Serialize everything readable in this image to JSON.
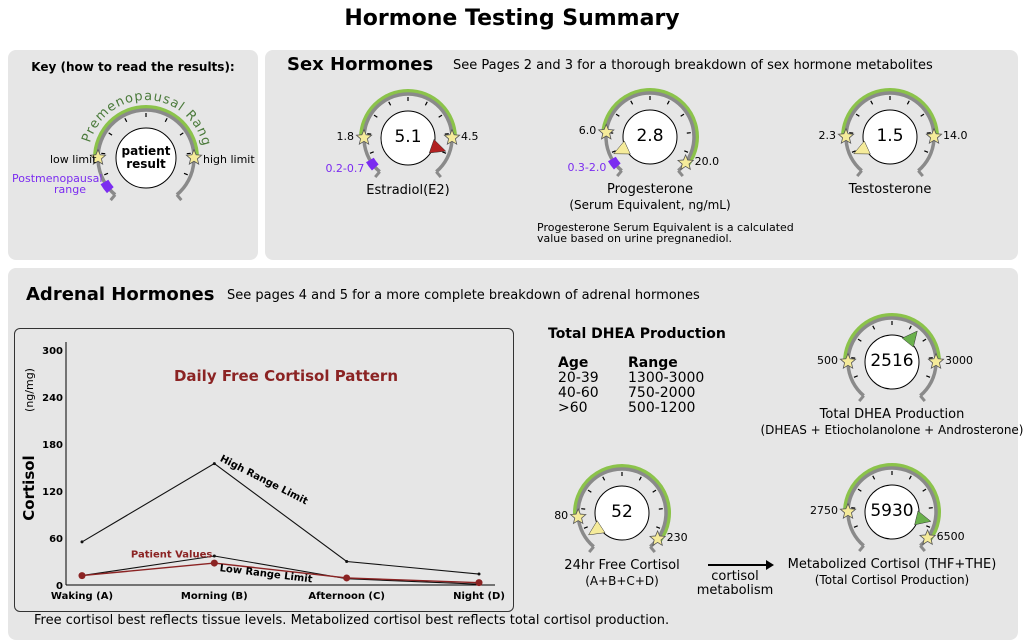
{
  "title": "Hormone Testing Summary",
  "key": {
    "title": "Key (how to read the results):",
    "arc_label": "Premenopausal Range",
    "center": [
      "patient",
      "result"
    ],
    "low": "low limit",
    "high": "high limit",
    "post": [
      "Postmenopausal",
      "range"
    ]
  },
  "sex": {
    "title": "Sex Hormones",
    "subtitle": "See Pages 2 and 3 for a thorough breakdown of sex hormone metabolites",
    "note": [
      "Progesterone Serum Equivalent is a calculated",
      "value based on urine pregnanediol."
    ]
  },
  "adrenal": {
    "title": "Adrenal Hormones",
    "subtitle": "See pages 4 and 5 for a more complete breakdown of adrenal hormones",
    "footer": "Free cortisol best reflects tissue levels. Metabolized cortisol best reflects total cortisol production.",
    "arrow_label": [
      "cortisol",
      "metabolism"
    ]
  },
  "dhea_table": {
    "title": "Total DHEA Production",
    "headers": [
      "Age",
      "Range"
    ],
    "rows": [
      [
        "20-39",
        "1300-3000"
      ],
      [
        "40-60",
        "750-2000"
      ],
      [
        ">60",
        "500-1200"
      ]
    ]
  },
  "colors": {
    "normal": "#6ab04c",
    "low": "#f5eb9a",
    "high": "#b22222",
    "range": "#8bc34a",
    "ring": "#8a8a8a",
    "post": "#7b2cf0",
    "chart_title": "#8b2323"
  },
  "gauges": [
    {
      "id": "estradiol",
      "value": "5.1",
      "low": "1.8",
      "high": "4.5",
      "post": "0.2-0.7",
      "name": "Estradiol(E2)",
      "sub": "",
      "status": "high",
      "low_pos": 0.18,
      "high_pos": 0.82,
      "value_pos": 0.89
    },
    {
      "id": "progesterone",
      "value": "2.8",
      "low": "6.0",
      "high": "20.0",
      "post": "0.3-2.0",
      "name": "Progesterone",
      "sub": "(Serum Equivalent, ng/mL)",
      "status": "low",
      "low_pos": 0.2,
      "high_pos": 0.95,
      "value_pos": 0.09
    },
    {
      "id": "testosterone",
      "value": "1.5",
      "low": "2.3",
      "high": "14.0",
      "post": "",
      "name": "Testosterone",
      "sub": "",
      "status": "low",
      "low_pos": 0.18,
      "high_pos": 0.82,
      "value_pos": 0.09
    },
    {
      "id": "dhea",
      "value": "2516",
      "low": "500",
      "high": "3000",
      "post": "",
      "name": "Total DHEA Production",
      "sub": "(DHEAS + Etiocholanolone + Androsterone)",
      "status": "normal",
      "low_pos": 0.18,
      "high_pos": 0.82,
      "value_pos": 0.64
    },
    {
      "id": "free-cortisol",
      "value": "52",
      "low": "80",
      "high": "230",
      "post": "",
      "name": "24hr Free Cortisol",
      "sub": "(A+B+C+D)",
      "status": "low",
      "low_pos": 0.16,
      "high_pos": 0.95,
      "value_pos": 0.06
    },
    {
      "id": "metabolized-cortisol",
      "value": "5930",
      "low": "2750",
      "high": "6500",
      "post": "",
      "name": "Metabolized Cortisol (THF+THE)",
      "sub": "(Total Cortisol Production)",
      "status": "normal",
      "low_pos": 0.18,
      "high_pos": 0.95,
      "value_pos": 0.87
    }
  ],
  "chart_data": {
    "type": "line",
    "title": "Daily Free Cortisol Pattern",
    "ylabel": "Cortisol",
    "yunit": "(ng/mg)",
    "categories": [
      "Waking (A)",
      "Morning (B)",
      "Afternoon (C)",
      "Night (D)"
    ],
    "ylim": [
      0,
      300
    ],
    "yticks": [
      0,
      60,
      120,
      180,
      240,
      300
    ],
    "series": [
      {
        "name": "High Range Limit",
        "values": [
          55,
          155,
          30,
          14
        ]
      },
      {
        "name": "Low Range Limit",
        "values": [
          12,
          37,
          8,
          1
        ]
      },
      {
        "name": "Patient Values",
        "values": [
          12,
          28,
          9,
          3
        ]
      }
    ]
  }
}
